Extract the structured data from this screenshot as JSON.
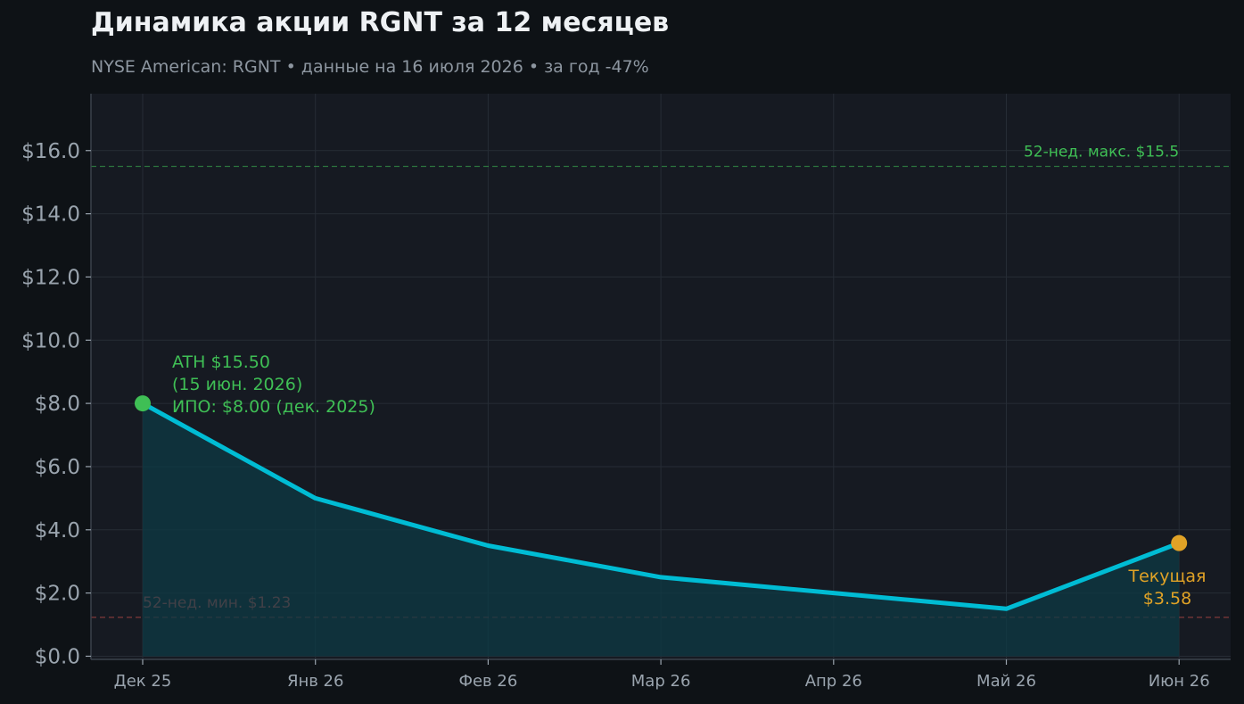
{
  "title": "Динамика акции RGNT за 12 месяцев",
  "subtitle": "NYSE American: RGNT  •  данные на 16 июля 2026  •  за год -47%",
  "colors": {
    "background": "#0e1216",
    "plot_background": "#161a22",
    "line": "#00bcd4",
    "fill": "#0e3a44",
    "high": "#3fbf55",
    "low": "#d9534f",
    "current": "#e0a226",
    "tick": "#9aa4ae",
    "grid": "#262c35"
  },
  "chart_data": {
    "type": "area",
    "x": [
      "Дек 25",
      "Янв 26",
      "Фев 26",
      "Мар 26",
      "Апр 26",
      "Май 26",
      "Июн 26"
    ],
    "series": [
      {
        "x": [
          "Дек 25",
          "Янв 26",
          "Фев 26",
          "Мар 26",
          "Апр 26",
          "Май 26",
          "Июн 26"
        ],
        "values": [
          8.0,
          5.0,
          3.5,
          2.5,
          2.0,
          1.5,
          3.58
        ]
      }
    ],
    "ylim": [
      -0.1,
      17.8
    ],
    "yticks": [
      0,
      2,
      4,
      6,
      8,
      10,
      12,
      14,
      16
    ],
    "ytick_labels": [
      "$0.0",
      "$2.0",
      "$4.0",
      "$6.0",
      "$8.0",
      "$10.0",
      "$12.0",
      "$14.0",
      "$16.0"
    ],
    "grid": true,
    "reference_lines": [
      {
        "id": "high",
        "value": 15.5,
        "label": "52-нед. макс. $15.5"
      },
      {
        "id": "low",
        "value": 1.23,
        "label": "52-нед. мин. $1.23"
      }
    ],
    "annotations": {
      "ath": {
        "lines": [
          "ATH $15.50",
          "(15 июн. 2026)",
          "ИПО: $8.00 (дек. 2025)"
        ]
      },
      "current": {
        "lines": [
          "Текущая",
          "$3.58"
        ]
      }
    }
  }
}
